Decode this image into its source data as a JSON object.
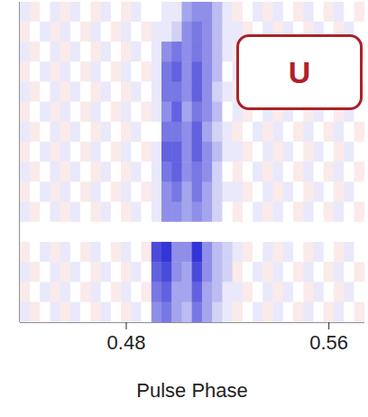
{
  "chart_data": {
    "type": "heatmap",
    "x_label": "Pulse Phase",
    "annotations": [
      "U"
    ],
    "tick_labels": "x",
    "xlim": [
      0.438,
      0.574
    ],
    "xticks": [
      0.48,
      0.56
    ],
    "ylim": [
      0,
      16
    ],
    "zlim": [
      -1,
      1
    ],
    "x": [
      0.44,
      0.444,
      0.448,
      0.452,
      0.456,
      0.46,
      0.464,
      0.468,
      0.472,
      0.476,
      0.48,
      0.484,
      0.488,
      0.492,
      0.496,
      0.5,
      0.504,
      0.508,
      0.512,
      0.516,
      0.52,
      0.524,
      0.528,
      0.532,
      0.536,
      0.54,
      0.544,
      0.548,
      0.552,
      0.556,
      0.56,
      0.564,
      0.568,
      0.572
    ],
    "y": [
      0.5,
      1.5,
      2.5,
      3.5,
      4.5,
      5.5,
      6.5,
      7.5,
      8.5,
      9.5,
      10.5,
      11.5,
      12.5,
      13.5,
      14.5,
      15.5
    ],
    "cells": [
      [
        0.1,
        -0.1,
        0,
        0.1,
        -0.1,
        0.1,
        0,
        -0.1,
        0.1,
        0,
        -0.1,
        0.1,
        0,
        0,
        0.1,
        0.1,
        0.4,
        0.5,
        0.5,
        0.3,
        0.1,
        -0.1,
        0,
        0.1,
        -0.1,
        0.1,
        0,
        -0.1,
        0.1,
        0,
        -0.1,
        0.1,
        0,
        -0.1
      ],
      [
        -0.1,
        0,
        0.1,
        -0.1,
        0.1,
        0,
        -0.1,
        0.1,
        0,
        -0.1,
        0.1,
        0,
        -0.1,
        0.1,
        0.1,
        0.2,
        0.5,
        0.6,
        0.5,
        0.3,
        0.1,
        0.1,
        -0.1,
        0,
        0.1,
        -0.1,
        0.1,
        0,
        -0.1,
        0.1,
        0,
        -0.1,
        0.1,
        0
      ],
      [
        0.1,
        -0.1,
        0,
        0.1,
        -0.1,
        0.1,
        0,
        -0.1,
        0.1,
        0,
        -0.1,
        0.1,
        0,
        0.1,
        0.5,
        0.6,
        0.5,
        0.6,
        0.5,
        0.3,
        0.1,
        -0.1,
        0,
        0.1,
        -0.1,
        0.1,
        0,
        -0.1,
        0.1,
        0,
        -0.1,
        0.1,
        0,
        -0.1
      ],
      [
        -0.1,
        0,
        0.1,
        -0.1,
        0.1,
        0,
        -0.1,
        0.1,
        0,
        -0.1,
        0.1,
        0,
        -0.1,
        0.1,
        0.6,
        0.7,
        0.5,
        0.7,
        0.5,
        0.3,
        0,
        0.1,
        -0.1,
        0,
        0.1,
        -0.1,
        0.1,
        0,
        -0.1,
        0.1,
        0,
        -0.1,
        0.1,
        0
      ],
      [
        0.1,
        -0.1,
        0,
        0.1,
        -0.1,
        0.1,
        0,
        -0.1,
        0.1,
        0,
        -0.1,
        0.1,
        0,
        0.1,
        0.6,
        0.6,
        0.5,
        0.7,
        0.5,
        0.2,
        0.1,
        -0.1,
        0,
        0.1,
        -0.1,
        0.1,
        0,
        -0.1,
        0.1,
        0,
        -0.1,
        0.1,
        0,
        -0.1
      ],
      [
        -0.1,
        0,
        0.1,
        -0.1,
        0.1,
        0,
        -0.1,
        0.1,
        0,
        -0.1,
        0.1,
        0,
        -0.1,
        0.1,
        0.5,
        0.7,
        0.4,
        0.6,
        0.5,
        0.3,
        0,
        0.1,
        -0.1,
        0,
        0.1,
        -0.1,
        0.1,
        0,
        -0.1,
        0.1,
        0,
        -0.1,
        0.1,
        0
      ],
      [
        0.1,
        -0.1,
        0,
        0.1,
        -0.1,
        0.1,
        0,
        -0.1,
        0.1,
        0,
        -0.1,
        0.1,
        0,
        0,
        0.6,
        0.6,
        0.5,
        0.7,
        0.4,
        0.2,
        0.1,
        -0.1,
        0,
        0.1,
        -0.1,
        0.1,
        0,
        -0.1,
        0.1,
        0,
        -0.1,
        0.1,
        0,
        -0.1
      ],
      [
        -0.1,
        0,
        0.1,
        -0.1,
        0.1,
        0,
        -0.1,
        0.1,
        0,
        -0.1,
        0.1,
        0,
        -0.1,
        0.1,
        0.7,
        0.7,
        0.5,
        0.7,
        0.5,
        0.3,
        0.1,
        0.1,
        -0.1,
        0,
        0.1,
        -0.1,
        0.1,
        0,
        -0.1,
        0.1,
        0,
        -0.1,
        0.1,
        0
      ],
      [
        0.1,
        -0.1,
        0,
        0.1,
        -0.1,
        0.1,
        0,
        -0.1,
        0.1,
        0,
        -0.1,
        0.1,
        0,
        0.1,
        0.6,
        0.7,
        0.5,
        0.6,
        0.5,
        0.2,
        0,
        -0.1,
        0,
        0.1,
        -0.1,
        0.1,
        0,
        -0.1,
        0.1,
        0,
        -0.1,
        0.1,
        0,
        -0.1
      ],
      [
        -0.1,
        0,
        0.1,
        -0.1,
        0.1,
        0,
        -0.1,
        0.1,
        0,
        -0.1,
        0.1,
        0,
        -0.1,
        0.1,
        0.5,
        0.6,
        0.4,
        0.6,
        0.4,
        0.2,
        0.1,
        0.1,
        -0.1,
        0,
        0.1,
        -0.1,
        0.1,
        0,
        -0.1,
        0.1,
        0,
        -0.1,
        0.1,
        0
      ],
      [
        0.1,
        -0.1,
        0,
        0.1,
        -0.1,
        0.1,
        0,
        -0.1,
        0.1,
        0,
        -0.1,
        0.1,
        0,
        0.1,
        0.5,
        0.5,
        0.4,
        0.5,
        0.4,
        0.2,
        0,
        -0.1,
        0,
        0.1,
        -0.1,
        0.1,
        0,
        -0.1,
        0.1,
        0,
        -0.1,
        0.1,
        0,
        -0.1
      ],
      [
        0,
        0,
        0,
        0,
        0,
        0,
        0,
        0,
        0,
        0,
        0,
        0,
        0,
        0,
        0,
        0,
        0,
        0,
        0,
        0,
        0,
        0,
        0,
        0,
        0,
        0,
        0,
        0,
        0,
        0,
        0,
        0,
        0,
        0
      ],
      [
        -0.1,
        0,
        0.1,
        -0.1,
        0.1,
        0,
        -0.1,
        0.1,
        0,
        -0.1,
        0.1,
        0,
        -0.1,
        0.8,
        0.9,
        0.5,
        0.5,
        0.9,
        0.5,
        0.3,
        0.2,
        0.1,
        -0.1,
        0,
        0.1,
        -0.1,
        0.1,
        0,
        -0.1,
        0.1,
        0,
        -0.1,
        0.1,
        0
      ],
      [
        0.1,
        -0.1,
        0,
        0.1,
        -0.1,
        0.1,
        0,
        -0.1,
        0.1,
        0,
        -0.1,
        0.1,
        0,
        0.7,
        0.8,
        0.5,
        0.4,
        0.8,
        0.5,
        0.3,
        0.2,
        -0.1,
        0,
        0.1,
        -0.1,
        0.1,
        0,
        -0.1,
        0.1,
        0,
        -0.1,
        0.1,
        0,
        -0.1
      ],
      [
        -0.1,
        0,
        0.1,
        -0.1,
        0.1,
        0,
        -0.1,
        0.1,
        0,
        -0.1,
        0.1,
        0,
        -0.1,
        0.6,
        0.7,
        0.4,
        0.4,
        0.7,
        0.4,
        0.3,
        0.1,
        0.1,
        -0.1,
        0,
        0.1,
        -0.1,
        0.1,
        0,
        -0.1,
        0.1,
        0,
        -0.1,
        0.1,
        0
      ],
      [
        0.1,
        -0.1,
        0,
        0.1,
        -0.1,
        0.1,
        0,
        -0.1,
        0.1,
        0,
        -0.1,
        0.1,
        0,
        0.5,
        0.6,
        0.4,
        0.3,
        0.6,
        0.4,
        0.2,
        0.1,
        -0.1,
        0,
        0.1,
        -0.1,
        0.1,
        0,
        -0.1,
        0.1,
        0,
        -0.1,
        0.1,
        0,
        -0.1
      ]
    ]
  }
}
